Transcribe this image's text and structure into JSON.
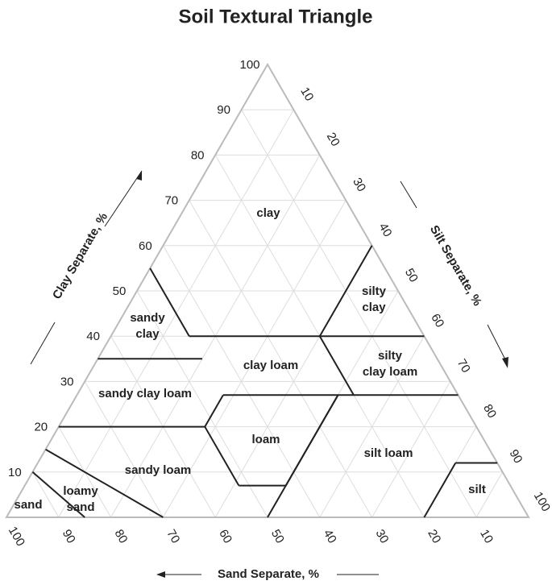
{
  "title": "Soil Textural Triangle",
  "axes": {
    "clay": {
      "label": "Clay Separate, %",
      "ticks": [
        10,
        20,
        30,
        40,
        50,
        60,
        70,
        80,
        90,
        100
      ]
    },
    "silt": {
      "label": "Silt Separate, %",
      "ticks": [
        10,
        20,
        30,
        40,
        50,
        60,
        70,
        80,
        90,
        100
      ]
    },
    "sand": {
      "label": "Sand Separate, %",
      "ticks": [
        100,
        90,
        80,
        70,
        60,
        50,
        40,
        30,
        20,
        10
      ]
    }
  },
  "regions": [
    {
      "lines": [
        "clay"
      ]
    },
    {
      "lines": [
        "silty",
        "clay"
      ]
    },
    {
      "lines": [
        "sandy",
        "clay"
      ]
    },
    {
      "lines": [
        "clay loam"
      ]
    },
    {
      "lines": [
        "silty",
        "clay loam"
      ]
    },
    {
      "lines": [
        "sandy clay loam"
      ]
    },
    {
      "lines": [
        "loam"
      ]
    },
    {
      "lines": [
        "silt loam"
      ]
    },
    {
      "lines": [
        "sandy loam"
      ]
    },
    {
      "lines": [
        "loamy",
        "sand"
      ]
    },
    {
      "lines": [
        "sand"
      ]
    },
    {
      "lines": [
        "silt"
      ]
    }
  ]
}
